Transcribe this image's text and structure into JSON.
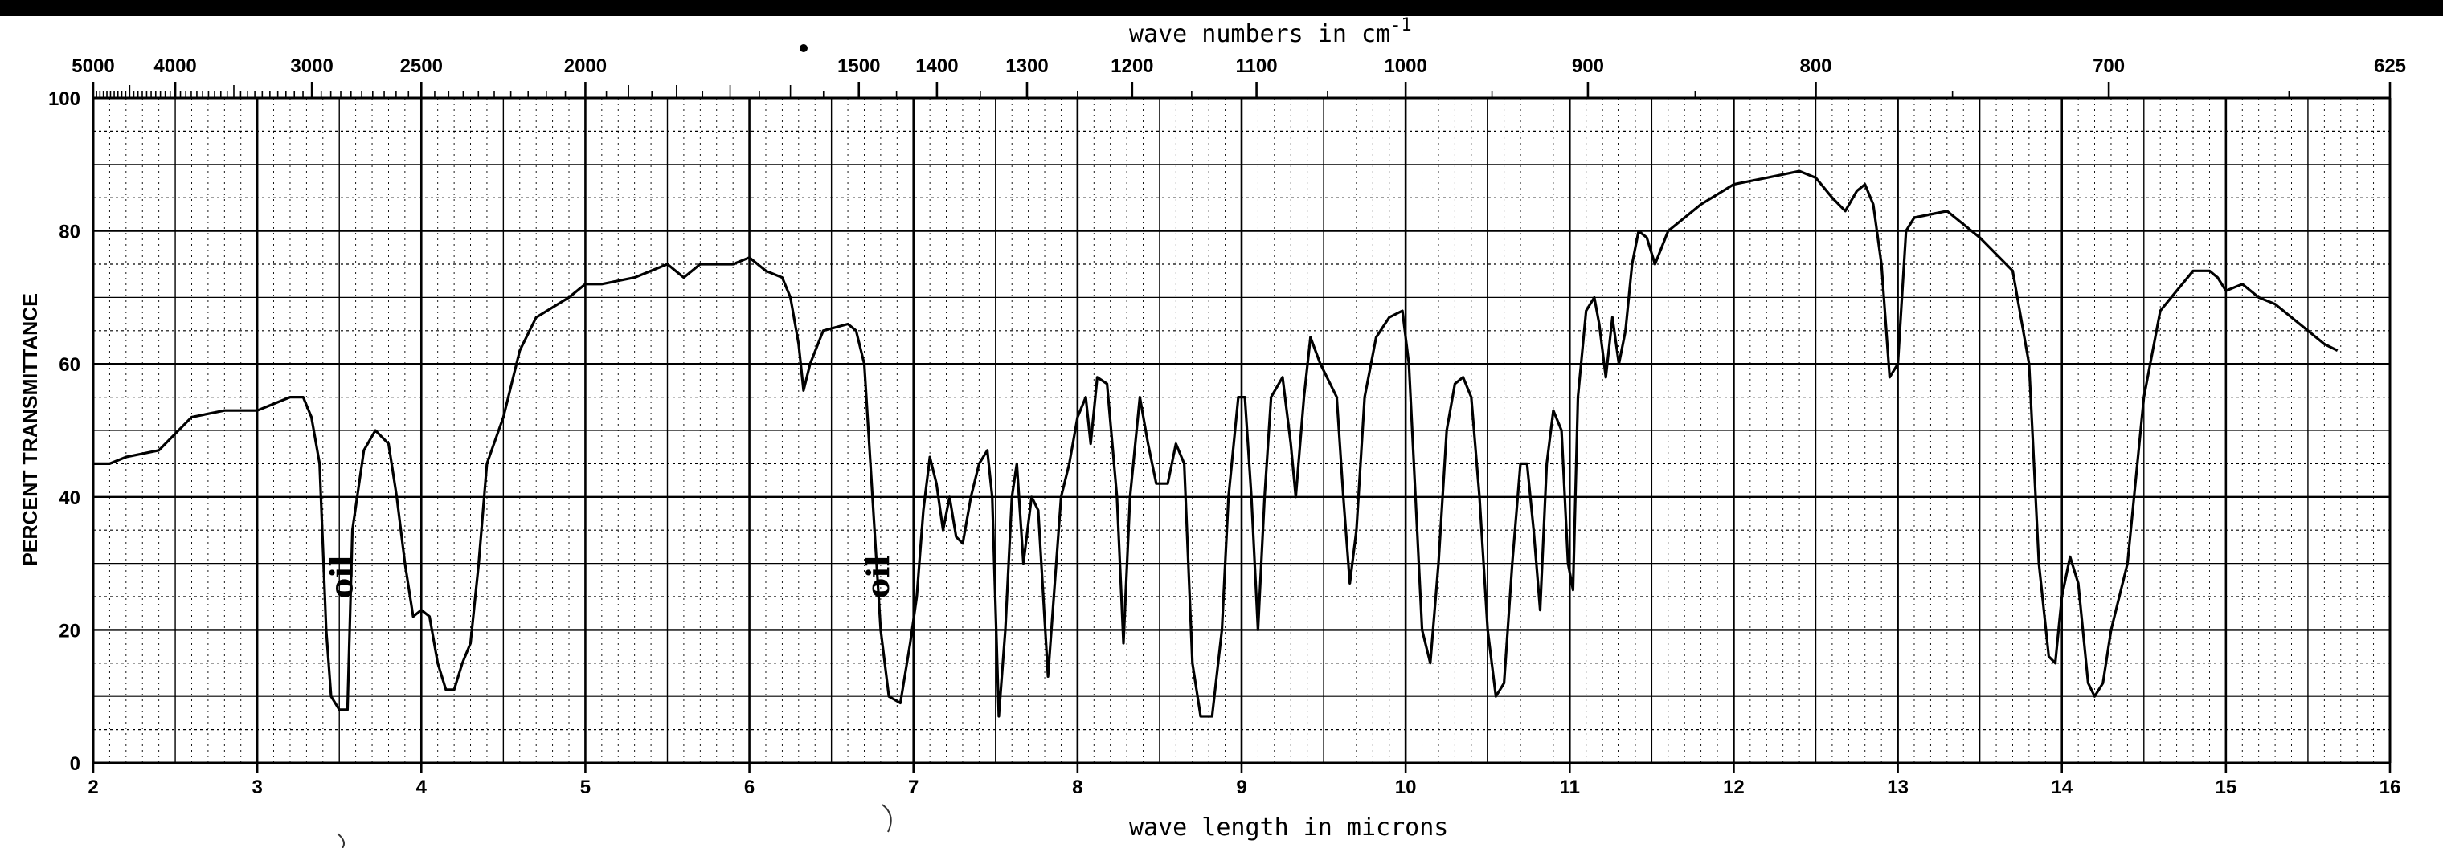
{
  "chart_data": {
    "type": "line",
    "title_top": "wave numbers in cm",
    "title_top_sup": "-1",
    "xlabel": "wave length in microns",
    "ylabel": "PERCENT TRANSMITTANCE",
    "xlim": [
      2,
      16
    ],
    "ylim": [
      0,
      100
    ],
    "x_ticks": [
      "2",
      "3",
      "4",
      "5",
      "6",
      "7",
      "8",
      "9",
      "10",
      "11",
      "12",
      "13",
      "14",
      "15",
      "16"
    ],
    "y_ticks": [
      "0",
      "20",
      "40",
      "60",
      "80",
      "100"
    ],
    "top_ticks": [
      {
        "label": "5000",
        "micron": 2.0
      },
      {
        "label": "4000",
        "micron": 2.5
      },
      {
        "label": "3000",
        "micron": 3.333
      },
      {
        "label": "2500",
        "micron": 4.0
      },
      {
        "label": "2000",
        "micron": 5.0
      },
      {
        "label": "1500",
        "micron": 6.667
      },
      {
        "label": "1400",
        "micron": 7.143
      },
      {
        "label": "1300",
        "micron": 7.692
      },
      {
        "label": "1200",
        "micron": 8.333
      },
      {
        "label": "1100",
        "micron": 9.091
      },
      {
        "label": "1000",
        "micron": 10.0
      },
      {
        "label": "900",
        "micron": 11.111
      },
      {
        "label": "800",
        "micron": 12.5
      },
      {
        "label": "700",
        "micron": 14.286
      },
      {
        "label": "625",
        "micron": 16.0
      }
    ],
    "annotations": [
      {
        "text": "oil",
        "x": 3.58,
        "y": 28
      },
      {
        "text": "oil",
        "x": 6.85,
        "y": 28
      }
    ],
    "grid": true,
    "series": [
      {
        "points": [
          [
            2.0,
            45
          ],
          [
            2.1,
            45
          ],
          [
            2.2,
            46
          ],
          [
            2.4,
            47
          ],
          [
            2.6,
            52
          ],
          [
            2.8,
            53
          ],
          [
            3.0,
            53
          ],
          [
            3.1,
            54
          ],
          [
            3.2,
            55
          ],
          [
            3.28,
            55
          ],
          [
            3.33,
            52
          ],
          [
            3.38,
            45
          ],
          [
            3.42,
            20
          ],
          [
            3.45,
            10
          ],
          [
            3.5,
            8
          ],
          [
            3.55,
            8
          ],
          [
            3.58,
            35
          ],
          [
            3.65,
            47
          ],
          [
            3.72,
            50
          ],
          [
            3.8,
            48
          ],
          [
            3.85,
            40
          ],
          [
            3.9,
            30
          ],
          [
            3.95,
            22
          ],
          [
            4.0,
            23
          ],
          [
            4.05,
            22
          ],
          [
            4.1,
            15
          ],
          [
            4.15,
            11
          ],
          [
            4.2,
            11
          ],
          [
            4.25,
            15
          ],
          [
            4.3,
            18
          ],
          [
            4.35,
            30
          ],
          [
            4.4,
            45
          ],
          [
            4.5,
            52
          ],
          [
            4.6,
            62
          ],
          [
            4.7,
            67
          ],
          [
            4.9,
            70
          ],
          [
            5.0,
            72
          ],
          [
            5.1,
            72
          ],
          [
            5.3,
            73
          ],
          [
            5.5,
            75
          ],
          [
            5.6,
            73
          ],
          [
            5.7,
            75
          ],
          [
            5.9,
            75
          ],
          [
            6.0,
            76
          ],
          [
            6.1,
            74
          ],
          [
            6.2,
            73
          ],
          [
            6.25,
            70
          ],
          [
            6.3,
            63
          ],
          [
            6.33,
            56
          ],
          [
            6.37,
            60
          ],
          [
            6.45,
            65
          ],
          [
            6.6,
            66
          ],
          [
            6.65,
            65
          ],
          [
            6.7,
            60
          ],
          [
            6.75,
            40
          ],
          [
            6.8,
            20
          ],
          [
            6.85,
            10
          ],
          [
            6.92,
            9
          ],
          [
            6.98,
            18
          ],
          [
            7.02,
            25
          ],
          [
            7.06,
            38
          ],
          [
            7.1,
            46
          ],
          [
            7.14,
            42
          ],
          [
            7.18,
            35
          ],
          [
            7.22,
            40
          ],
          [
            7.26,
            34
          ],
          [
            7.3,
            33
          ],
          [
            7.35,
            40
          ],
          [
            7.4,
            45
          ],
          [
            7.45,
            47
          ],
          [
            7.48,
            40
          ],
          [
            7.52,
            7
          ],
          [
            7.56,
            20
          ],
          [
            7.6,
            40
          ],
          [
            7.63,
            45
          ],
          [
            7.67,
            30
          ],
          [
            7.72,
            40
          ],
          [
            7.76,
            38
          ],
          [
            7.82,
            13
          ],
          [
            7.9,
            40
          ],
          [
            7.95,
            45
          ],
          [
            8.0,
            52
          ],
          [
            8.05,
            55
          ],
          [
            8.08,
            48
          ],
          [
            8.12,
            58
          ],
          [
            8.18,
            57
          ],
          [
            8.24,
            40
          ],
          [
            8.28,
            18
          ],
          [
            8.32,
            40
          ],
          [
            8.38,
            55
          ],
          [
            8.43,
            48
          ],
          [
            8.48,
            42
          ],
          [
            8.55,
            42
          ],
          [
            8.6,
            48
          ],
          [
            8.65,
            45
          ],
          [
            8.7,
            15
          ],
          [
            8.75,
            7
          ],
          [
            8.82,
            7
          ],
          [
            8.88,
            20
          ],
          [
            8.92,
            40
          ],
          [
            8.98,
            55
          ],
          [
            9.02,
            55
          ],
          [
            9.06,
            40
          ],
          [
            9.1,
            20
          ],
          [
            9.14,
            40
          ],
          [
            9.18,
            55
          ],
          [
            9.25,
            58
          ],
          [
            9.3,
            48
          ],
          [
            9.33,
            40
          ],
          [
            9.38,
            55
          ],
          [
            9.42,
            64
          ],
          [
            9.48,
            60
          ],
          [
            9.52,
            58
          ],
          [
            9.58,
            55
          ],
          [
            9.62,
            40
          ],
          [
            9.66,
            27
          ],
          [
            9.7,
            35
          ],
          [
            9.75,
            55
          ],
          [
            9.82,
            64
          ],
          [
            9.9,
            67
          ],
          [
            9.98,
            68
          ],
          [
            10.02,
            60
          ],
          [
            10.06,
            40
          ],
          [
            10.1,
            20
          ],
          [
            10.15,
            15
          ],
          [
            10.2,
            30
          ],
          [
            10.25,
            50
          ],
          [
            10.3,
            57
          ],
          [
            10.35,
            58
          ],
          [
            10.4,
            55
          ],
          [
            10.45,
            40
          ],
          [
            10.5,
            20
          ],
          [
            10.55,
            10
          ],
          [
            10.6,
            12
          ],
          [
            10.65,
            30
          ],
          [
            10.7,
            45
          ],
          [
            10.74,
            45
          ],
          [
            10.78,
            35
          ],
          [
            10.82,
            23
          ],
          [
            10.86,
            45
          ],
          [
            10.9,
            53
          ],
          [
            10.95,
            50
          ],
          [
            10.99,
            30
          ],
          [
            11.02,
            26
          ],
          [
            11.05,
            55
          ],
          [
            11.1,
            68
          ],
          [
            11.15,
            70
          ],
          [
            11.18,
            66
          ],
          [
            11.22,
            58
          ],
          [
            11.26,
            67
          ],
          [
            11.3,
            60
          ],
          [
            11.34,
            65
          ],
          [
            11.38,
            75
          ],
          [
            11.42,
            80
          ],
          [
            11.47,
            79
          ],
          [
            11.52,
            75
          ],
          [
            11.6,
            80
          ],
          [
            11.8,
            84
          ],
          [
            12.0,
            87
          ],
          [
            12.2,
            88
          ],
          [
            12.4,
            89
          ],
          [
            12.5,
            88
          ],
          [
            12.6,
            85
          ],
          [
            12.68,
            83
          ],
          [
            12.75,
            86
          ],
          [
            12.8,
            87
          ],
          [
            12.85,
            84
          ],
          [
            12.9,
            75
          ],
          [
            12.95,
            58
          ],
          [
            13.0,
            60
          ],
          [
            13.05,
            80
          ],
          [
            13.1,
            82
          ],
          [
            13.3,
            83
          ],
          [
            13.5,
            79
          ],
          [
            13.7,
            74
          ],
          [
            13.8,
            60
          ],
          [
            13.86,
            30
          ],
          [
            13.92,
            16
          ],
          [
            13.96,
            15
          ],
          [
            14.0,
            25
          ],
          [
            14.05,
            31
          ],
          [
            14.1,
            27
          ],
          [
            14.16,
            12
          ],
          [
            14.2,
            10
          ],
          [
            14.25,
            12
          ],
          [
            14.3,
            20
          ],
          [
            14.4,
            30
          ],
          [
            14.5,
            55
          ],
          [
            14.6,
            68
          ],
          [
            14.8,
            74
          ],
          [
            14.9,
            74
          ],
          [
            14.95,
            73
          ],
          [
            15.0,
            71
          ],
          [
            15.1,
            72
          ],
          [
            15.2,
            70
          ],
          [
            15.3,
            69
          ],
          [
            15.4,
            67
          ],
          [
            15.5,
            65
          ],
          [
            15.6,
            63
          ],
          [
            15.68,
            62
          ]
        ]
      }
    ]
  }
}
